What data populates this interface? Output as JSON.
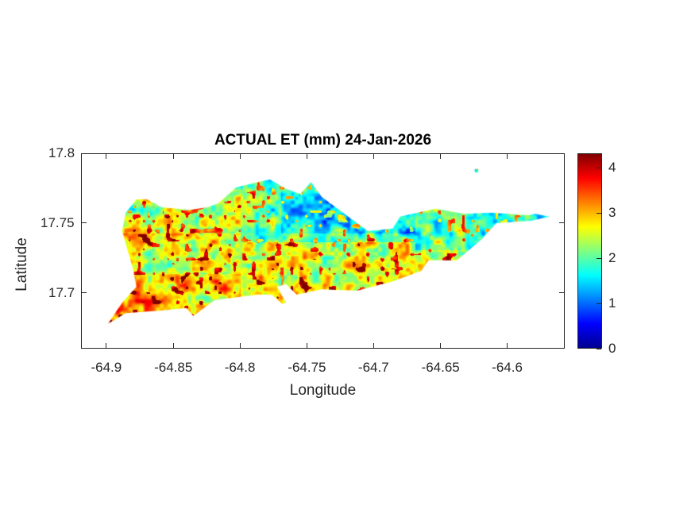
{
  "chart_data": {
    "type": "heatmap",
    "title": "ACTUAL ET (mm) 24-Jan-2026",
    "xlabel": "Longitude",
    "ylabel": "Latitude",
    "xlim": [
      -64.919,
      -64.557
    ],
    "ylim": [
      17.66,
      17.8
    ],
    "xticks": [
      -64.9,
      -64.85,
      -64.8,
      -64.75,
      -64.7,
      -64.65,
      -64.6
    ],
    "xtick_labels": [
      "-64.9",
      "-64.85",
      "-64.8",
      "-64.75",
      "-64.7",
      "-64.65",
      "-64.6"
    ],
    "yticks": [
      17.7,
      17.75,
      17.8
    ],
    "ytick_labels": [
      "17.7",
      "17.75",
      "17.8"
    ],
    "colormap": "jet",
    "colorbar": {
      "limits": [
        0,
        4.32
      ],
      "ticks": [
        0,
        1,
        2,
        3,
        4
      ],
      "tick_labels": [
        "0",
        "1",
        "2",
        "3",
        "4"
      ],
      "location": "right"
    },
    "grid": false
  }
}
